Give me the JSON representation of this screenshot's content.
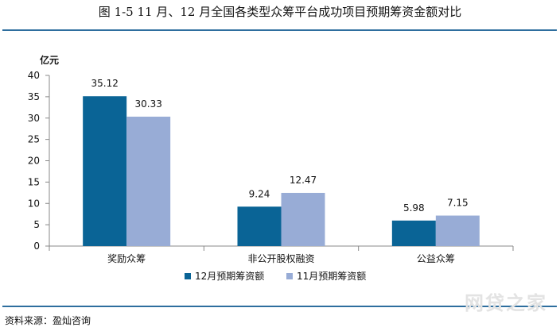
{
  "figure": {
    "title": "图 1-5    11 月、12 月全国各类型众筹平台成功项目预期筹资金额对比",
    "source": "资料来源：盈灿咨询",
    "watermark": "网贷之家"
  },
  "colors": {
    "series_dec": "#0a6496",
    "series_nov": "#98acd6",
    "rule": "#2e6e9e"
  },
  "chart_data": {
    "type": "bar",
    "title": "",
    "ylabel": "亿元",
    "xlabel": "",
    "ylim": [
      0,
      40
    ],
    "yticks": [
      0,
      5,
      10,
      15,
      20,
      25,
      30,
      35,
      40
    ],
    "categories": [
      "奖励众筹",
      "非公开股权融资",
      "公益众筹"
    ],
    "series": [
      {
        "name": "12月预期筹资额",
        "values": [
          35.12,
          9.24,
          5.98
        ]
      },
      {
        "name": "11月预期筹资额",
        "values": [
          30.33,
          12.47,
          7.15
        ]
      }
    ],
    "value_labels": [
      [
        "35.12",
        "9.24",
        "5.98"
      ],
      [
        "30.33",
        "12.47",
        "7.15"
      ]
    ],
    "legend_position": "bottom",
    "grid": false
  }
}
